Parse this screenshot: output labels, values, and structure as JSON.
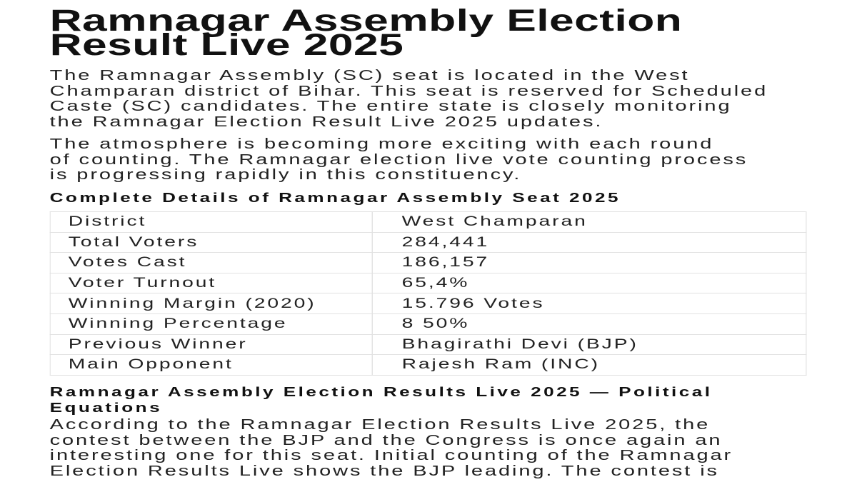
{
  "title": [
    "Ramnagar Assembly Election",
    "Result Live 2025"
  ],
  "intro": [
    "The Ramnagar Assembly (SC) seat is located in the West",
    "Champaran district of Bihar. This seat is reserved for Scheduled",
    "Caste (SC) candidates. The entire state is closely monitoring",
    "the Ramnagar Election Result Live 2025 updates."
  ],
  "para2": [
    "The atmosphere is becoming more exciting with each round",
    "of counting. The Ramnagar election live vote counting process",
    "is progressing rapidly in this constituency."
  ],
  "details_heading": "Complete Details of Ramnagar Assembly Seat 2025",
  "details": [
    {
      "k": "District",
      "v": "West Champaran"
    },
    {
      "k": "Total Voters",
      "v": "284,441"
    },
    {
      "k": "Votes Cast",
      "v": "186,157"
    },
    {
      "k": "Voter Turnout",
      "v": "65,4%"
    },
    {
      "k": "Winning Margin (2020)",
      "v": "15.796 Votes"
    },
    {
      "k": "Winning Percentage",
      "v": "8 50%"
    },
    {
      "k": "Previous Winner",
      "v": "Bhagirathi Devi (BJP)"
    },
    {
      "k": "Main Opponent",
      "v": "Rajesh Ram (INC)"
    }
  ],
  "equations_heading": [
    "Ramnagar Assembly Election Results Live 2025 — Political",
    "Equations"
  ],
  "para3": [
    "According to the Ramnagar Election Results Live 2025, the",
    "contest between the BJP and the Congress is once again an",
    "interesting one for this seat. Initial counting of the Ramnagar",
    "Election Results Live shows the BJP leading. The contest is"
  ]
}
